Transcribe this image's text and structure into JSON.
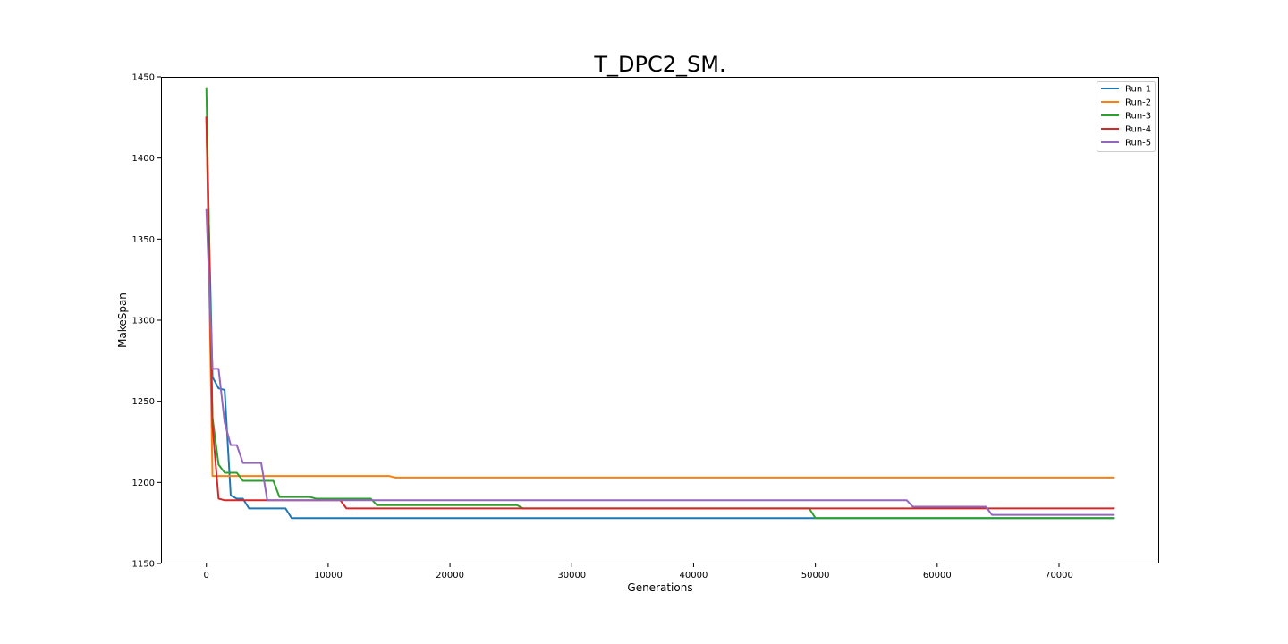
{
  "chart_data": {
    "type": "line",
    "title": "T_DPC2_SM.",
    "xlabel": "Generations",
    "ylabel": "MakeSpan",
    "xlim": [
      -3725,
      78225
    ],
    "ylim": [
      1150,
      1450
    ],
    "xticks": [
      0,
      10000,
      20000,
      30000,
      40000,
      50000,
      60000,
      70000
    ],
    "yticks": [
      1150,
      1200,
      1250,
      1300,
      1350,
      1400,
      1450
    ],
    "grid": false,
    "legend_position": "top-right",
    "series": [
      {
        "name": "Run-1",
        "color": "#1f77b4",
        "points": [
          [
            0,
            1425
          ],
          [
            500,
            1265
          ],
          [
            1000,
            1258
          ],
          [
            1500,
            1257
          ],
          [
            2000,
            1192
          ],
          [
            2500,
            1190
          ],
          [
            3000,
            1190
          ],
          [
            3500,
            1184
          ],
          [
            6500,
            1184
          ],
          [
            7000,
            1178
          ],
          [
            74500,
            1178
          ]
        ]
      },
      {
        "name": "Run-2",
        "color": "#ff7f0e",
        "points": [
          [
            0,
            1425
          ],
          [
            500,
            1204
          ],
          [
            15000,
            1204
          ],
          [
            15500,
            1203
          ],
          [
            74500,
            1203
          ]
        ]
      },
      {
        "name": "Run-3",
        "color": "#2ca02c",
        "points": [
          [
            0,
            1443
          ],
          [
            500,
            1240
          ],
          [
            1000,
            1211
          ],
          [
            1500,
            1206
          ],
          [
            2500,
            1206
          ],
          [
            3000,
            1201
          ],
          [
            5500,
            1201
          ],
          [
            6000,
            1191
          ],
          [
            8500,
            1191
          ],
          [
            9000,
            1190
          ],
          [
            13500,
            1190
          ],
          [
            14000,
            1186
          ],
          [
            25500,
            1186
          ],
          [
            26000,
            1184
          ],
          [
            49500,
            1184
          ],
          [
            50000,
            1178
          ],
          [
            74500,
            1178
          ]
        ]
      },
      {
        "name": "Run-4",
        "color": "#d62728",
        "points": [
          [
            0,
            1425
          ],
          [
            500,
            1235
          ],
          [
            1000,
            1190
          ],
          [
            1500,
            1189
          ],
          [
            11000,
            1189
          ],
          [
            11500,
            1184
          ],
          [
            74500,
            1184
          ]
        ]
      },
      {
        "name": "Run-5",
        "color": "#9467bd",
        "points": [
          [
            0,
            1368
          ],
          [
            500,
            1270
          ],
          [
            1000,
            1270
          ],
          [
            1500,
            1237
          ],
          [
            2000,
            1223
          ],
          [
            2500,
            1223
          ],
          [
            3000,
            1212
          ],
          [
            4500,
            1212
          ],
          [
            5000,
            1189
          ],
          [
            57500,
            1189
          ],
          [
            58000,
            1185
          ],
          [
            64000,
            1185
          ],
          [
            64500,
            1180
          ],
          [
            74500,
            1180
          ]
        ]
      }
    ]
  }
}
